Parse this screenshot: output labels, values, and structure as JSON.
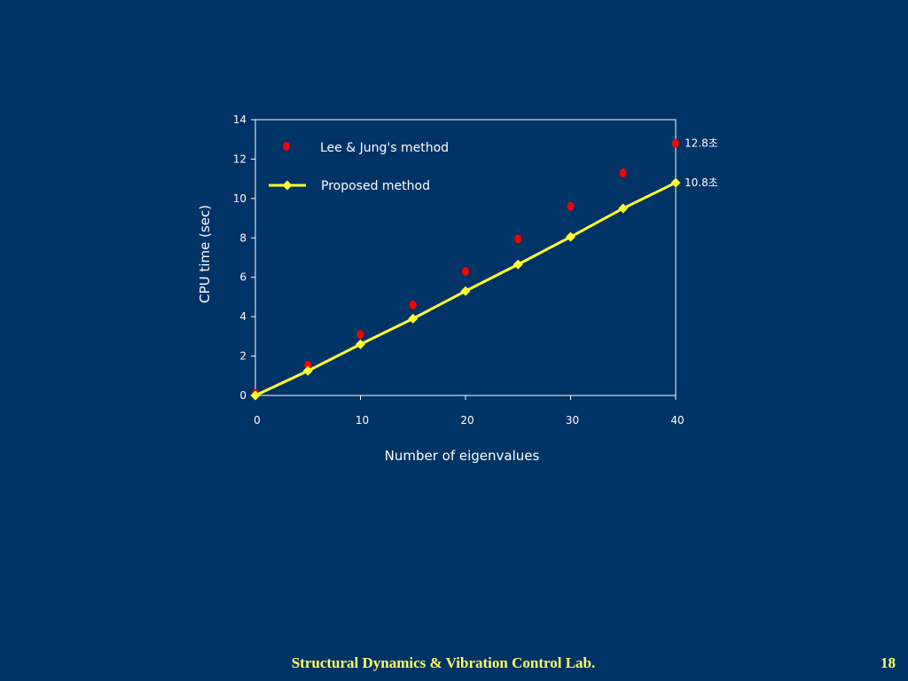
{
  "colors": {
    "background": "#003366",
    "axis": "#ffffff",
    "text": "#ffffff",
    "series_lee": "#ff0000",
    "series_proposed": "#ffff33",
    "footer": "#ffff66"
  },
  "chart_data": {
    "type": "line",
    "xlabel": "Number of eigenvalues",
    "ylabel": "CPU time (sec)",
    "xlim": [
      0,
      40
    ],
    "ylim": [
      0,
      14
    ],
    "xticks": [
      "0",
      "10",
      "20",
      "30",
      "40"
    ],
    "yticks": [
      "0",
      "2",
      "4",
      "6",
      "8",
      "10",
      "12",
      "14"
    ],
    "grid": false,
    "legend_position": "top-left",
    "series": [
      {
        "name": "Lee & Jung's method",
        "marker": "circle",
        "line": false,
        "x": [
          0,
          5,
          10,
          15,
          20,
          25,
          30,
          35,
          40
        ],
        "y": [
          0.1,
          1.55,
          3.1,
          4.6,
          6.3,
          7.95,
          9.6,
          11.3,
          12.8
        ]
      },
      {
        "name": "Proposed method",
        "marker": "diamond",
        "line": true,
        "x": [
          0,
          5,
          10,
          15,
          20,
          25,
          30,
          35,
          40
        ],
        "y": [
          0,
          1.25,
          2.6,
          3.9,
          5.3,
          6.65,
          8.05,
          9.5,
          10.8
        ]
      }
    ],
    "annotations": [
      {
        "text": "12.8초",
        "series": 0
      },
      {
        "text": "10.8초",
        "series": 1
      }
    ]
  },
  "footer": {
    "lab_name": "Structural Dynamics & Vibration Control Lab.",
    "page_number": "18"
  }
}
